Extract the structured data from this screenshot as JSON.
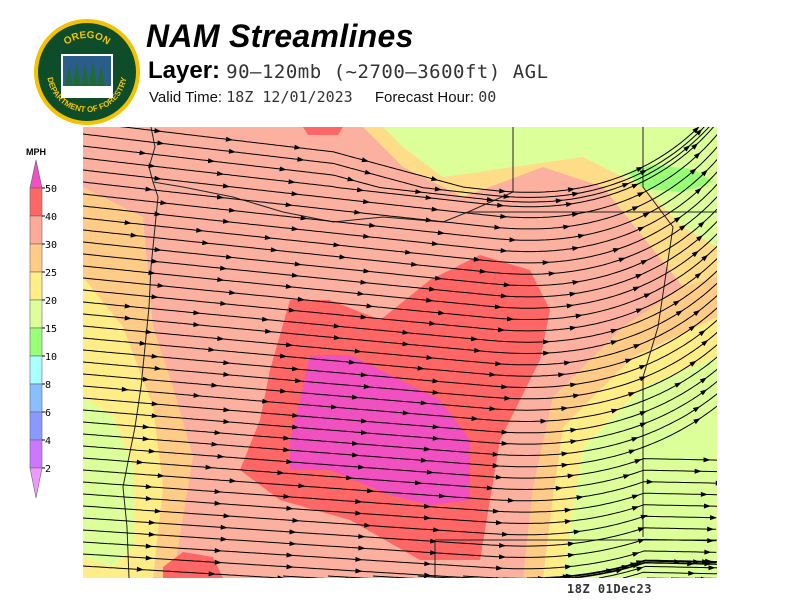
{
  "logo": {
    "text_top": "OREGON",
    "text_bottom": "DEPARTMENT OF FORESTRY",
    "colors": {
      "ring": "#f2c200",
      "field": "#0f4d2a"
    }
  },
  "header": {
    "title": "NAM Streamlines",
    "layer_label": "Layer:",
    "layer_value": "90–120mb (~2700–3600ft) AGL",
    "valid_label": "Valid Time:",
    "valid_value": "18Z 12/01/2023",
    "forecast_label": "Forecast Hour:",
    "forecast_value": "00"
  },
  "legend": {
    "unit": "MPH",
    "ticks": [
      "50",
      "40",
      "30",
      "25",
      "20",
      "15",
      "10",
      "8",
      "6",
      "4",
      "2"
    ],
    "colors": [
      "#f050c0",
      "#ff6666",
      "#ffaa99",
      "#ffcc88",
      "#ffee88",
      "#ddff99",
      "#99ff77",
      "#aaffff",
      "#88c0ff",
      "#8899ff",
      "#cc77ff",
      "#ee99ff"
    ]
  },
  "map": {
    "variable": "wind streamlines",
    "region": "Oregon",
    "base_color": "#fbb0a0"
  },
  "footer": {
    "stamp": "18Z 01Dec23"
  }
}
